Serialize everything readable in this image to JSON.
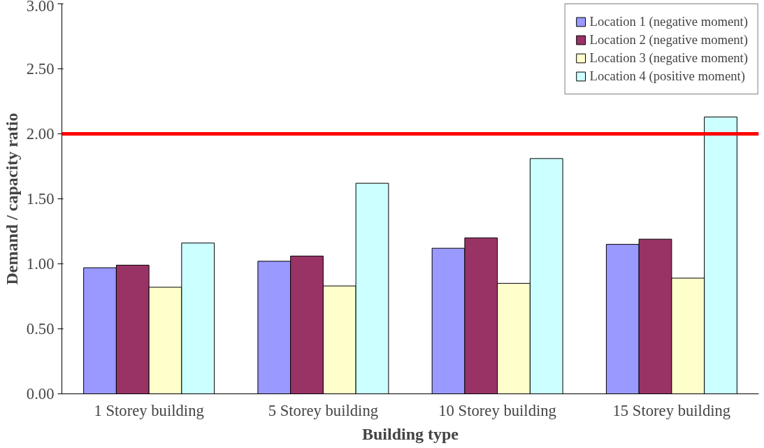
{
  "chart_data": {
    "type": "bar",
    "xlabel": "Building type",
    "ylabel": "Demand / capacity ratio",
    "categories": [
      "1 Storey building",
      "5 Storey building",
      "10 Storey building",
      "15 Storey building"
    ],
    "series": [
      {
        "name": "Location 1 (negative moment)",
        "color": "#9999ff",
        "values": [
          0.97,
          1.02,
          1.12,
          1.15
        ]
      },
      {
        "name": "Location 2 (negative moment)",
        "color": "#993366",
        "values": [
          0.99,
          1.06,
          1.2,
          1.19
        ]
      },
      {
        "name": "Location 3 (negative moment)",
        "color": "#ffffcc",
        "values": [
          0.82,
          0.83,
          0.85,
          0.89
        ]
      },
      {
        "name": "Location 4 (positive moment)",
        "color": "#ccffff",
        "values": [
          1.16,
          1.62,
          1.81,
          2.13
        ]
      }
    ],
    "ylim": [
      0,
      3
    ],
    "yticks": [
      {
        "value": 0,
        "label": "0.00"
      },
      {
        "value": 0.5,
        "label": "0.50"
      },
      {
        "value": 1,
        "label": "1.00"
      },
      {
        "value": 1.5,
        "label": "1.50"
      },
      {
        "value": 2,
        "label": "2.00"
      },
      {
        "value": 2.5,
        "label": "2.50"
      },
      {
        "value": 3,
        "label": "3.00"
      }
    ],
    "ref_lines": [
      {
        "axis": "y",
        "value": 2.0,
        "color": "#ff0000"
      }
    ],
    "grid": false,
    "legend": "top right"
  }
}
